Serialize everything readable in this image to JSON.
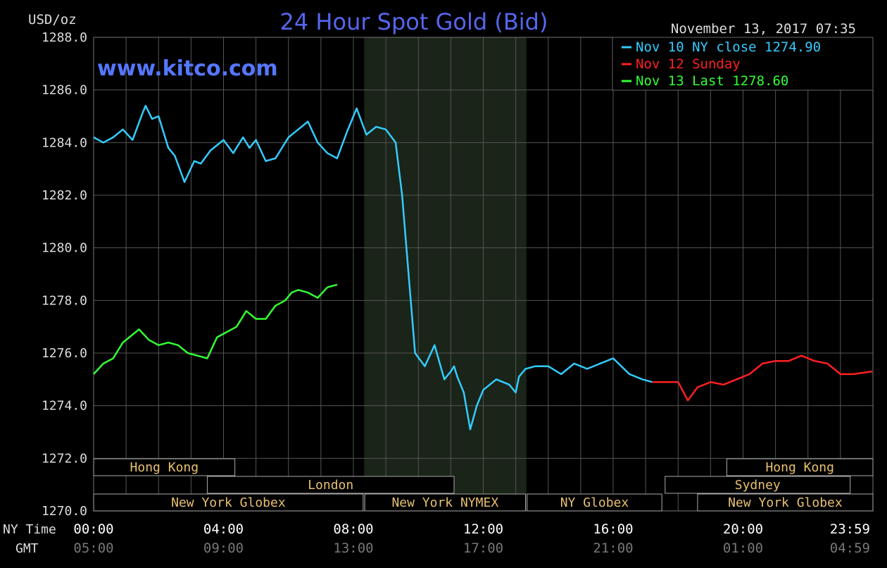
{
  "chart_data": {
    "type": "line",
    "title": "24 Hour Spot Gold (Bid)",
    "ylabel": "USD/oz",
    "watermark": "www.kitco.com",
    "timestamp": "November 13, 2017 07:35",
    "ylim": [
      1270,
      1288
    ],
    "y_ticks": [
      "1288.0",
      "1286.0",
      "1284.0",
      "1282.0",
      "1280.0",
      "1278.0",
      "1276.0",
      "1274.0",
      "1272.0",
      "1270.0"
    ],
    "x_row_labels": {
      "ny": "NY Time",
      "gmt": "GMT"
    },
    "x_ticks_ny": [
      "00:00",
      "04:00",
      "08:00",
      "12:00",
      "16:00",
      "20:00",
      "23:59"
    ],
    "x_ticks_gmt": [
      "05:00",
      "09:00",
      "13:00",
      "17:00",
      "21:00",
      "01:00",
      "04:59"
    ],
    "grid": true,
    "legend_position": "top-right",
    "legend": [
      {
        "label": "Nov 10 NY close 1274.90",
        "color": "#33ccff"
      },
      {
        "label": "Nov 12 Sunday",
        "color": "#ff2020"
      },
      {
        "label": "Nov 13 Last 1278.60",
        "color": "#33ff33"
      }
    ],
    "shaded_session": {
      "from_hour": 8.33,
      "to_hour": 13.33
    },
    "series": [
      {
        "color": "#33ccff",
        "x": [
          0.0,
          0.3,
          0.6,
          0.9,
          1.2,
          1.5,
          1.6,
          1.8,
          2.0,
          2.3,
          2.5,
          2.8,
          3.1,
          3.3,
          3.6,
          4.0,
          4.3,
          4.6,
          4.8,
          5.0,
          5.3,
          5.6,
          6.0,
          6.3,
          6.6,
          6.9,
          7.2,
          7.5,
          7.8,
          8.1,
          8.4,
          8.7,
          9.0,
          9.3,
          9.5,
          9.7,
          9.9,
          10.2,
          10.5,
          10.8,
          11.0,
          11.1,
          11.2,
          11.3,
          11.4,
          11.6,
          11.8,
          12.0,
          12.4,
          12.8,
          13.0,
          13.1,
          13.3,
          13.6,
          14.0,
          14.4,
          14.8,
          15.2,
          15.6,
          16.0,
          16.5,
          16.9,
          17.2
        ],
        "values": [
          1284.2,
          1284.0,
          1284.2,
          1284.5,
          1284.1,
          1285.1,
          1285.4,
          1284.9,
          1285.0,
          1283.8,
          1283.5,
          1282.5,
          1283.3,
          1283.2,
          1283.7,
          1284.1,
          1283.6,
          1284.2,
          1283.8,
          1284.1,
          1283.3,
          1283.4,
          1284.2,
          1284.5,
          1284.8,
          1284.0,
          1283.6,
          1283.4,
          1284.4,
          1285.3,
          1284.3,
          1284.6,
          1284.5,
          1284.0,
          1282.0,
          1279.0,
          1276.0,
          1275.5,
          1276.3,
          1275.0,
          1275.3,
          1275.5,
          1275.1,
          1274.8,
          1274.5,
          1273.1,
          1274.0,
          1274.6,
          1275.0,
          1274.8,
          1274.5,
          1275.1,
          1275.4,
          1275.5,
          1275.5,
          1275.2,
          1275.6,
          1275.4,
          1275.6,
          1275.8,
          1275.2,
          1275.0,
          1274.9
        ]
      },
      {
        "color": "#ff2020",
        "x": [
          17.2,
          18.0,
          18.3,
          18.6,
          19.0,
          19.4,
          19.8,
          20.2,
          20.6,
          21.0,
          21.4,
          21.8,
          22.2,
          22.6,
          23.0,
          23.4,
          23.98
        ],
        "values": [
          1274.9,
          1274.9,
          1274.2,
          1274.7,
          1274.9,
          1274.8,
          1275.0,
          1275.2,
          1275.6,
          1275.7,
          1275.7,
          1275.9,
          1275.7,
          1275.6,
          1275.2,
          1275.2,
          1275.3
        ]
      },
      {
        "color": "#33ff33",
        "x": [
          0.0,
          0.3,
          0.6,
          0.9,
          1.2,
          1.4,
          1.7,
          2.0,
          2.3,
          2.6,
          2.9,
          3.2,
          3.5,
          3.8,
          4.1,
          4.4,
          4.7,
          5.0,
          5.3,
          5.6,
          5.9,
          6.1,
          6.3,
          6.6,
          6.9,
          7.2,
          7.5
        ],
        "values": [
          1275.2,
          1275.6,
          1275.8,
          1276.4,
          1276.7,
          1276.9,
          1276.5,
          1276.3,
          1276.4,
          1276.3,
          1276.0,
          1275.9,
          1275.8,
          1276.6,
          1276.8,
          1277.0,
          1277.6,
          1277.3,
          1277.3,
          1277.8,
          1278.0,
          1278.3,
          1278.4,
          1278.3,
          1278.1,
          1278.5,
          1278.6
        ]
      }
    ],
    "sessions": [
      {
        "label": "Hong Kong",
        "from_hour": 0.0,
        "to_hour": 4.35,
        "row": 0
      },
      {
        "label": "London",
        "from_hour": 3.5,
        "to_hour": 11.1,
        "row": 1
      },
      {
        "label": "New York Globex",
        "from_hour": 0.0,
        "to_hour": 8.3,
        "row": 2
      },
      {
        "label": "New York NYMEX",
        "from_hour": 8.35,
        "to_hour": 13.3,
        "row": 2
      },
      {
        "label": "NY Globex",
        "from_hour": 13.35,
        "to_hour": 17.5,
        "row": 2
      },
      {
        "label": "Hong Kong",
        "from_hour": 19.5,
        "to_hour": 24.0,
        "row": 0
      },
      {
        "label": "Sydney",
        "from_hour": 17.6,
        "to_hour": 23.3,
        "row": 1
      },
      {
        "label": "New York Globex",
        "from_hour": 18.6,
        "to_hour": 24.0,
        "row": 2
      }
    ]
  }
}
